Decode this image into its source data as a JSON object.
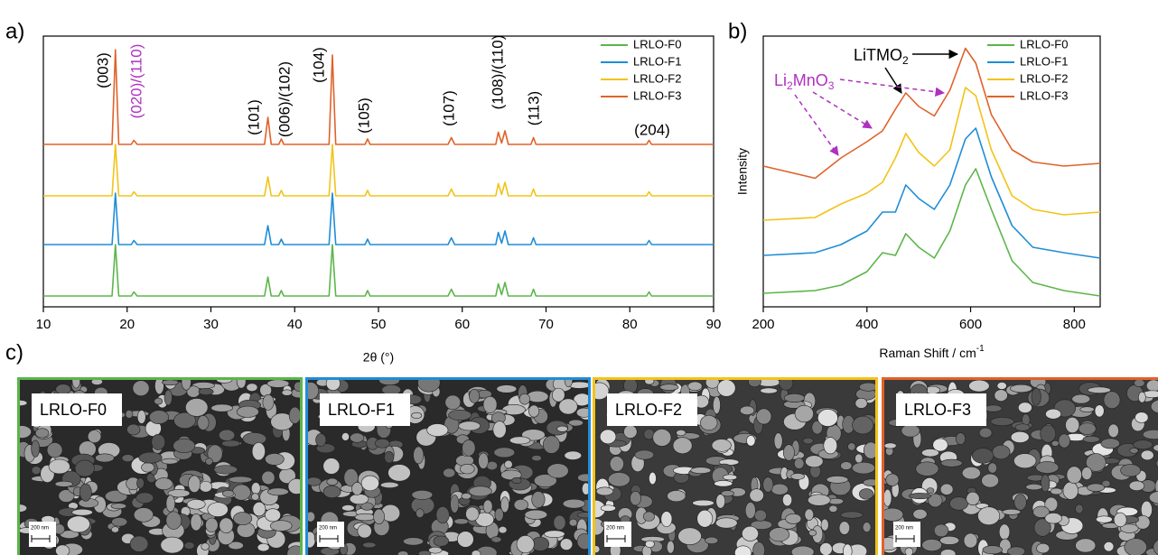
{
  "panel_labels": [
    "a)",
    "b)",
    "c)"
  ],
  "chart_data": [
    {
      "type": "line",
      "x_label": "2θ (°)",
      "xlim": [
        10,
        90
      ],
      "xticks": [
        10,
        20,
        30,
        40,
        50,
        60,
        70,
        80,
        90
      ],
      "ylim": [
        0,
        100
      ],
      "legend": "top-right",
      "x": [
        10,
        18.2,
        18.6,
        19.0,
        20.5,
        20.8,
        21.2,
        36.4,
        36.8,
        37.2,
        38.1,
        38.4,
        38.7,
        44.1,
        44.5,
        44.9,
        48.4,
        48.7,
        49.0,
        58.3,
        58.7,
        59.1,
        64.0,
        64.3,
        64.7,
        65.1,
        65.5,
        68.2,
        68.5,
        68.8,
        82.0,
        82.3,
        82.6,
        90
      ],
      "series": [
        {
          "name": "LRLO-F0",
          "color": "#5cb54a",
          "values": [
            4,
            4,
            23,
            4,
            4,
            5.5,
            4,
            4,
            11,
            4,
            4,
            6,
            4,
            4,
            23,
            4,
            4,
            6,
            4,
            4,
            6.5,
            4,
            4,
            8.5,
            4.5,
            9,
            4,
            4,
            6.5,
            4,
            4,
            5.5,
            4,
            4
          ]
        },
        {
          "name": "LRLO-F1",
          "color": "#1f8dd6",
          "values": [
            23,
            23,
            42,
            23,
            23,
            24.5,
            23,
            23,
            30,
            23,
            23,
            25,
            23,
            23,
            42,
            23,
            23,
            25,
            23,
            23,
            25.5,
            23,
            23,
            27.5,
            23.5,
            28,
            23,
            23,
            25.5,
            23,
            23,
            24.5,
            23,
            23
          ]
        },
        {
          "name": "LRLO-F2",
          "color": "#f2c318",
          "values": [
            41,
            41,
            60,
            41,
            41,
            42.5,
            41,
            41,
            48,
            41,
            41,
            43,
            41,
            41,
            60,
            41,
            41,
            43,
            41,
            41,
            43.5,
            41,
            41,
            45.5,
            41.5,
            46,
            41,
            41,
            43.5,
            41,
            41,
            42.5,
            41,
            41
          ]
        },
        {
          "name": "LRLO-F3",
          "color": "#e0622a",
          "values": [
            60,
            60,
            95,
            60,
            60,
            61.5,
            60,
            60,
            70,
            60,
            60,
            62,
            60,
            60,
            93,
            60,
            60,
            62,
            60,
            60,
            62.5,
            60,
            60,
            64.5,
            60.5,
            65,
            60,
            60,
            62.5,
            60,
            60,
            61.5,
            60,
            60
          ]
        }
      ],
      "peak_labels": [
        {
          "text": "(003)",
          "color": "#000000"
        },
        {
          "text": "(020)/(110)",
          "color": "#b030c0"
        },
        {
          "text": "(101)",
          "color": "#000000"
        },
        {
          "text": "(006)/(102)",
          "color": "#000000"
        },
        {
          "text": "(104)",
          "color": "#000000"
        },
        {
          "text": "(105)",
          "color": "#000000"
        },
        {
          "text": "(107)",
          "color": "#000000"
        },
        {
          "text": "(108)/(110)",
          "color": "#000000"
        },
        {
          "text": "(113)",
          "color": "#000000"
        },
        {
          "text": "(204)",
          "color": "#000000"
        }
      ]
    },
    {
      "type": "line",
      "x_label": {
        "text": "Raman Shift / cm",
        "sup": "-1"
      },
      "y_label": "Intensity",
      "xlim": [
        200,
        850
      ],
      "xticks": [
        200,
        400,
        600,
        800
      ],
      "ylim": [
        0,
        100
      ],
      "legend": "top-right",
      "x": [
        200,
        300,
        350,
        400,
        430,
        455,
        475,
        500,
        530,
        560,
        590,
        610,
        640,
        680,
        720,
        780,
        850
      ],
      "series": [
        {
          "name": "LRLO-F0",
          "color": "#5cb54a",
          "values": [
            5,
            6,
            8,
            13,
            20,
            19,
            27,
            22,
            18,
            28,
            45,
            51,
            36,
            17,
            9,
            6,
            4
          ]
        },
        {
          "name": "LRLO-F1",
          "color": "#1f8dd6",
          "values": [
            19,
            20,
            23,
            28,
            35,
            35,
            45,
            40,
            36,
            45,
            62,
            66,
            48,
            30,
            22,
            20,
            18
          ]
        },
        {
          "name": "LRLO-F2",
          "color": "#f2c318",
          "values": [
            32,
            33,
            38,
            42,
            46,
            55,
            64,
            57,
            52,
            58,
            81,
            78,
            58,
            41,
            36,
            34,
            35
          ]
        },
        {
          "name": "LRLO-F3",
          "color": "#e0622a",
          "values": [
            52,
            47.5,
            55,
            61,
            65,
            73,
            79,
            74,
            70.5,
            80,
            95.5,
            90,
            71,
            58,
            53.5,
            52,
            53
          ]
        }
      ],
      "annotations": [
        {
          "parts": [
            "LiTMO",
            "2"
          ],
          "color": "#000000"
        },
        {
          "parts": [
            "Li",
            "2",
            "MnO",
            "3"
          ],
          "color": "#b030c0"
        }
      ]
    }
  ],
  "sem_images": [
    {
      "label": "LRLO-F0",
      "scale_bar": "200 nm",
      "color": "#5cb54a"
    },
    {
      "label": "LRLO-F1",
      "scale_bar": "200 nm",
      "color": "#1f8dd6"
    },
    {
      "label": "LRLO-F2",
      "scale_bar": "200 nm",
      "color": "#f2c318"
    },
    {
      "label": "LRLO-F3",
      "scale_bar": "200 nm",
      "color": "#e0622a"
    }
  ]
}
